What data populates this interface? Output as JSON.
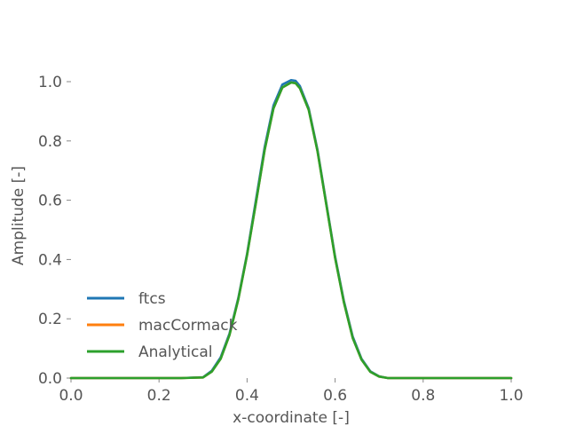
{
  "chart_data": {
    "type": "line",
    "title": "",
    "xlabel": "x-coordinate [-]",
    "ylabel": "Amplitude [-]",
    "xlim": [
      0.0,
      1.0
    ],
    "ylim": [
      0.0,
      1.0
    ],
    "xticks": [
      "0.0",
      "0.2",
      "0.4",
      "0.6",
      "0.8",
      "1.0"
    ],
    "yticks": [
      "0.0",
      "0.2",
      "0.4",
      "0.6",
      "0.8",
      "1.0"
    ],
    "grid": false,
    "legend_position": "lower-left",
    "series": [
      {
        "name": "ftcs",
        "color": "#1f77b4",
        "x": [
          0.0,
          0.05,
          0.1,
          0.15,
          0.2,
          0.25,
          0.3,
          0.32,
          0.34,
          0.36,
          0.38,
          0.4,
          0.42,
          0.44,
          0.46,
          0.48,
          0.5,
          0.51,
          0.52,
          0.54,
          0.56,
          0.58,
          0.6,
          0.62,
          0.64,
          0.66,
          0.68,
          0.7,
          0.72,
          0.75,
          0.8,
          0.85,
          0.9,
          0.95,
          1.0
        ],
        "y": [
          0.0,
          0.0,
          0.0,
          0.0,
          0.0,
          0.0,
          0.003,
          0.025,
          0.07,
          0.15,
          0.27,
          0.42,
          0.6,
          0.78,
          0.92,
          0.99,
          1.005,
          1.003,
          0.985,
          0.91,
          0.77,
          0.59,
          0.41,
          0.26,
          0.14,
          0.065,
          0.023,
          0.006,
          0.0,
          0.0,
          0.0,
          0.0,
          0.0,
          0.0,
          0.0
        ]
      },
      {
        "name": "macCormack",
        "color": "#ff7f0e",
        "x": [
          0.0,
          0.05,
          0.1,
          0.15,
          0.2,
          0.25,
          0.3,
          0.32,
          0.34,
          0.36,
          0.38,
          0.4,
          0.42,
          0.44,
          0.46,
          0.48,
          0.5,
          0.51,
          0.52,
          0.54,
          0.56,
          0.58,
          0.6,
          0.62,
          0.64,
          0.66,
          0.68,
          0.7,
          0.72,
          0.75,
          0.8,
          0.85,
          0.9,
          0.95,
          1.0
        ],
        "y": [
          0.0,
          0.0,
          0.0,
          0.0,
          0.0,
          0.0,
          0.002,
          0.022,
          0.065,
          0.145,
          0.265,
          0.415,
          0.59,
          0.77,
          0.91,
          0.98,
          0.997,
          0.995,
          0.978,
          0.905,
          0.765,
          0.585,
          0.405,
          0.255,
          0.135,
          0.062,
          0.021,
          0.005,
          0.0,
          0.0,
          0.0,
          0.0,
          0.0,
          0.0,
          0.0
        ]
      },
      {
        "name": "Analytical",
        "color": "#2ca02c",
        "x": [
          0.0,
          0.05,
          0.1,
          0.15,
          0.2,
          0.25,
          0.3,
          0.32,
          0.34,
          0.36,
          0.38,
          0.4,
          0.42,
          0.44,
          0.46,
          0.48,
          0.5,
          0.51,
          0.52,
          0.54,
          0.56,
          0.58,
          0.6,
          0.62,
          0.64,
          0.66,
          0.68,
          0.7,
          0.72,
          0.75,
          0.8,
          0.85,
          0.9,
          0.95,
          1.0
        ],
        "y": [
          0.0,
          0.0,
          0.0,
          0.0,
          0.0,
          0.0,
          0.002,
          0.022,
          0.065,
          0.145,
          0.265,
          0.415,
          0.59,
          0.77,
          0.91,
          0.98,
          0.997,
          0.995,
          0.978,
          0.905,
          0.765,
          0.585,
          0.405,
          0.255,
          0.135,
          0.062,
          0.021,
          0.005,
          0.0,
          0.0,
          0.0,
          0.0,
          0.0,
          0.0,
          0.0
        ]
      }
    ]
  }
}
